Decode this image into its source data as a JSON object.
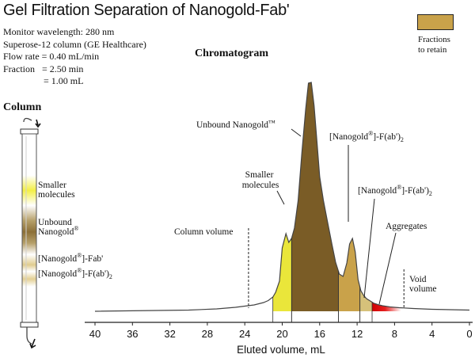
{
  "title": "Gel Filtration Separation of Nanogold-Fab'",
  "params": [
    "Monitor wavelength: 280 nm",
    "Superose-12 column (GE Healthcare)",
    "Flow rate = 0.40 mL/min",
    "Fraction   = 2.50 min",
    "                 = 1.00 mL"
  ],
  "chromatogram_title": "Chromatogram",
  "legend": {
    "label_line1": "Fractions",
    "label_line2": "to retain",
    "color": "#c9a24a"
  },
  "column": {
    "title": "Column",
    "bands": [
      {
        "line1": "Smaller",
        "line2": "molecules",
        "color": "#f1ee3a"
      },
      {
        "line1": "Unbound",
        "line2": "Nanogold",
        "sup": "®",
        "color": "#8c7038"
      },
      {
        "line1": "[Nanogold",
        "sup": "®",
        "line2": "]-Fab'",
        "color": "#d8c07a"
      },
      {
        "line1": "[Nanogold",
        "sup": "®",
        "line2": "]-F(ab')",
        "sub": "2",
        "color": "#e0ca8c"
      }
    ]
  },
  "peaks": {
    "smaller_molecules": {
      "line1": "Smaller",
      "line2": "molecules"
    },
    "unbound": {
      "text": "Unbound Nanogold",
      "suffix": "™"
    },
    "fab": {
      "line1": "[Nanogold",
      "sup": "®",
      "line2": "]-F(ab')",
      "sub": "2"
    },
    "fab2": {
      "line1": "[Nanogold",
      "sup": "®",
      "line2": "]-F(ab')",
      "sub": "2"
    },
    "aggregates": "Aggregates",
    "column_volume": "Column volume",
    "void_volume_line1": "Void",
    "void_volume_line2": "volume"
  },
  "chart_data": {
    "type": "area",
    "xlabel": "Eluted volume, mL",
    "x_ticks": [
      "40",
      "36",
      "32",
      "28",
      "24",
      "20",
      "16",
      "12",
      "8",
      "4",
      "0"
    ],
    "xlim": [
      40,
      0
    ],
    "trace": {
      "x": [
        40,
        30,
        27,
        25,
        23,
        22,
        21.5,
        21,
        20.7,
        20.3,
        20,
        19.6,
        19.3,
        19,
        18.7,
        18.3,
        17.9,
        17.5,
        17.2,
        16.9,
        16.6,
        16.3,
        16.0,
        15.6,
        15.2,
        14.7,
        14.3,
        13.9,
        13.5,
        13.1,
        12.8,
        12.5,
        12.2,
        11.9,
        11.6,
        11.3,
        11.0,
        10.6,
        10.2,
        9.8,
        9.3,
        8.5,
        7.5,
        6,
        4,
        2,
        0
      ],
      "y": [
        0,
        0.3,
        0.6,
        1,
        1.6,
        2.2,
        2.7,
        3.6,
        4.8,
        7.6,
        16.0,
        19.6,
        17.4,
        18.4,
        21.0,
        28.0,
        40.0,
        51.0,
        57.6,
        57.8,
        52.0,
        43.0,
        34.0,
        28.0,
        23.0,
        17.0,
        12.4,
        9.4,
        8.8,
        12.2,
        17.0,
        18.4,
        15.0,
        8.0,
        5.2,
        4.0,
        3.2,
        2.6,
        2.0,
        1.7,
        1.4,
        1.1,
        0.9,
        0.7,
        0.5,
        0.4,
        0.3
      ]
    },
    "fractions": [
      {
        "from": 21.0,
        "to": 19.0,
        "color": "#eae63a"
      },
      {
        "from": 19.0,
        "to": 14.0,
        "color": "#7a5c26"
      },
      {
        "from": 14.0,
        "to": 11.7,
        "color": "#c9a24a"
      },
      {
        "from": 11.7,
        "to": 10.4,
        "color": "#d6c17a"
      },
      {
        "from": 10.4,
        "to": 7.3,
        "color_start": "#d00000",
        "color_end": "#ffffff"
      }
    ],
    "markers": [
      {
        "x": 23.6,
        "label": "column_volume"
      },
      {
        "x": 7.0,
        "label": "void_volume"
      }
    ]
  }
}
